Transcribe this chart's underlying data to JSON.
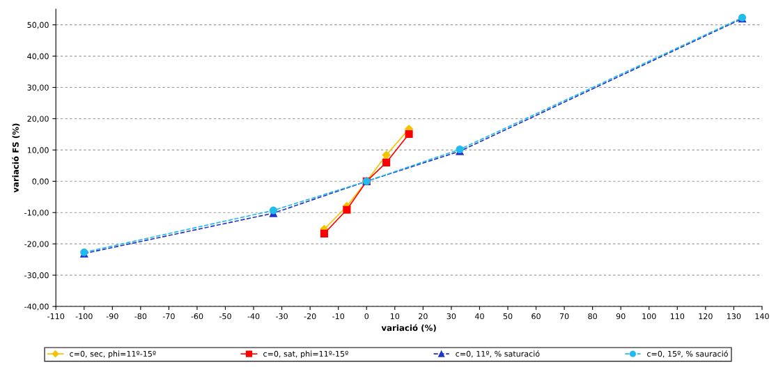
{
  "chart_data": {
    "type": "line",
    "xlabel": "variació (%)",
    "ylabel": "variació FS (%)",
    "xlim": [
      -110,
      140
    ],
    "xticks": [
      -110,
      -100,
      -90,
      -80,
      -70,
      -60,
      -50,
      -40,
      -30,
      -20,
      -10,
      0,
      10,
      20,
      30,
      40,
      50,
      60,
      70,
      80,
      90,
      100,
      110,
      120,
      130,
      140
    ],
    "ylim": [
      -40,
      55
    ],
    "yticks": [
      {
        "value": -40,
        "label": "-40,00"
      },
      {
        "value": -30,
        "label": "-30,00"
      },
      {
        "value": -20,
        "label": "-20,00"
      },
      {
        "value": -10,
        "label": "-10,00"
      },
      {
        "value": 0,
        "label": "0,00"
      },
      {
        "value": 10,
        "label": "10,00"
      },
      {
        "value": 20,
        "label": "20,00"
      },
      {
        "value": 30,
        "label": "30,00"
      },
      {
        "value": 40,
        "label": "40,00"
      },
      {
        "value": 50,
        "label": "50,00"
      }
    ],
    "grid": "y",
    "legend": "bottom",
    "series": [
      {
        "name": "c=0, sec, phi=11º-15º",
        "color": "#f5c400",
        "marker": "diamond",
        "line_style": "solid",
        "x": [
          -15,
          -7,
          0,
          7,
          15
        ],
        "values": [
          -15.3,
          -8.0,
          0,
          8.4,
          16.7
        ]
      },
      {
        "name": "c=0, sat, phi=11º-15º",
        "color": "#ff0000",
        "marker": "square",
        "line_style": "solid",
        "x": [
          -15,
          -7,
          0,
          7,
          15
        ],
        "values": [
          -16.7,
          -9.1,
          0,
          6.0,
          15.1
        ]
      },
      {
        "name": "c=0, 11º, % saturació",
        "color": "#2233cc",
        "marker": "triangle",
        "line_style": "dashed",
        "x": [
          -100,
          -33,
          0,
          33,
          133
        ],
        "values": [
          -23.1,
          -10.2,
          0,
          9.6,
          52
        ]
      },
      {
        "name": "c=0, 15º, % sauració",
        "color": "#22bbee",
        "marker": "circle",
        "line_style": "dashed",
        "x": [
          -100,
          -33,
          0,
          33,
          133
        ],
        "values": [
          -22.7,
          -9.3,
          0,
          10.2,
          52.3
        ]
      }
    ]
  }
}
